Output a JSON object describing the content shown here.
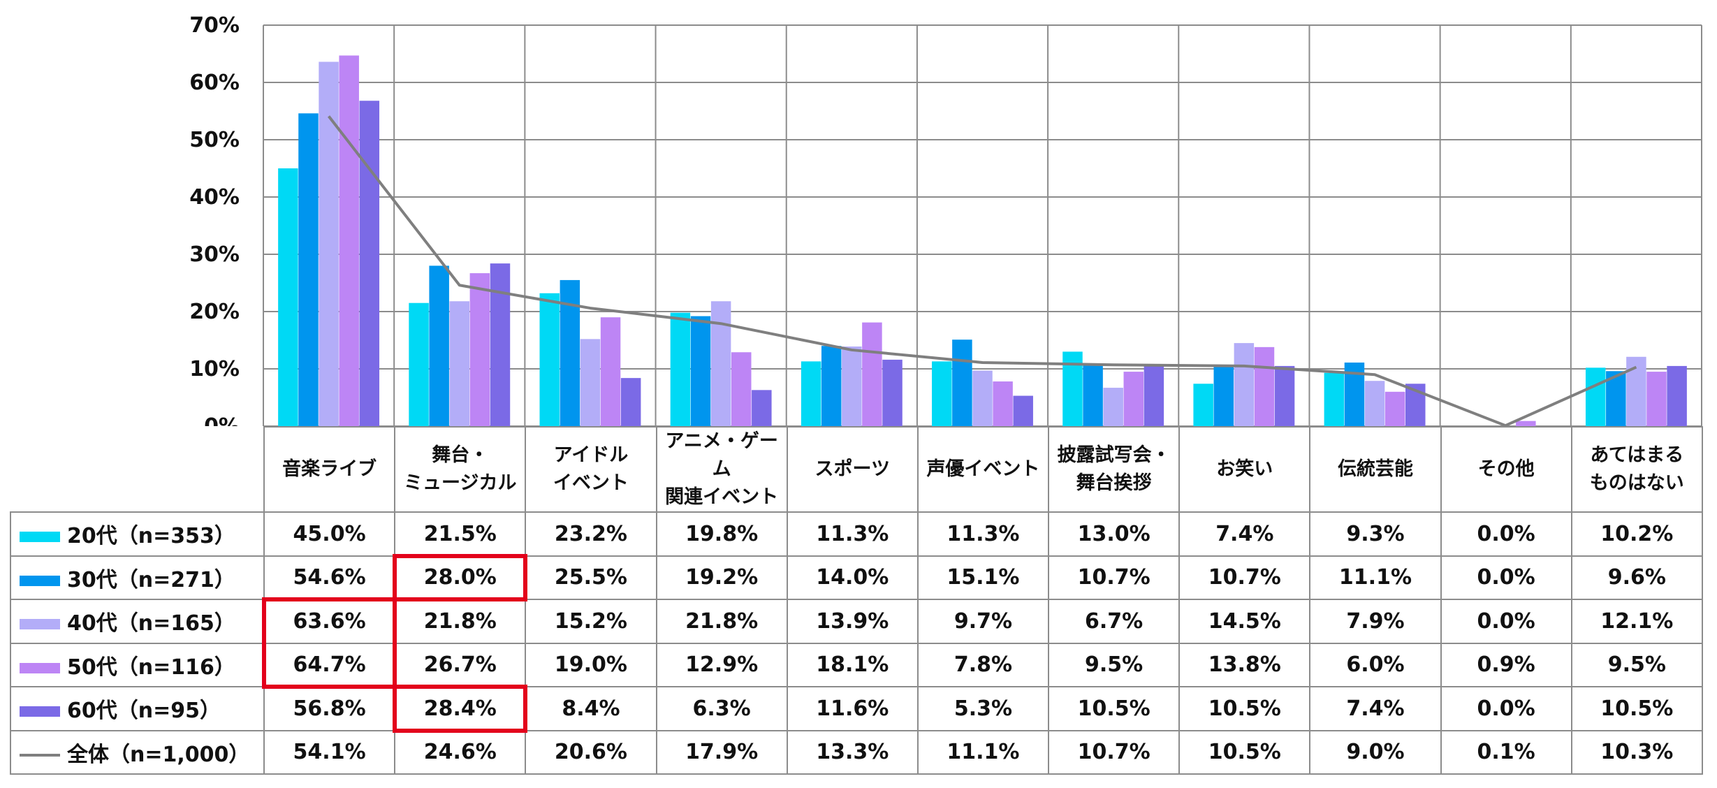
{
  "chart_data": {
    "type": "bar",
    "ylim": [
      0,
      70
    ],
    "yticks": [
      "0%",
      "10%",
      "20%",
      "30%",
      "40%",
      "50%",
      "60%",
      "70%"
    ],
    "categories": [
      "音楽ライブ",
      "舞台・\nミュージカル",
      "アイドル\nイベント",
      "アニメ・ゲーム\n関連イベント",
      "スポーツ",
      "声優イベント",
      "披露試写会・\n舞台挨拶",
      "お笑い",
      "伝統芸能",
      "その他",
      "あてはまる\nものはない"
    ],
    "series": [
      {
        "name": "20代（n=353）",
        "color": "#00d9f5",
        "values": [
          45.0,
          21.5,
          23.2,
          19.8,
          11.3,
          11.3,
          13.0,
          7.4,
          9.3,
          0.0,
          10.2
        ],
        "labels": [
          "45.0%",
          "21.5%",
          "23.2%",
          "19.8%",
          "11.3%",
          "11.3%",
          "13.0%",
          "7.4%",
          "9.3%",
          "0.0%",
          "10.2%"
        ]
      },
      {
        "name": "30代（n=271）",
        "color": "#0095ee",
        "values": [
          54.6,
          28.0,
          25.5,
          19.2,
          14.0,
          15.1,
          10.7,
          10.7,
          11.1,
          0.0,
          9.6
        ],
        "labels": [
          "54.6%",
          "28.0%",
          "25.5%",
          "19.2%",
          "14.0%",
          "15.1%",
          "10.7%",
          "10.7%",
          "11.1%",
          "0.0%",
          "9.6%"
        ]
      },
      {
        "name": "40代（n=165）",
        "color": "#b3adf8",
        "values": [
          63.6,
          21.8,
          15.2,
          21.8,
          13.9,
          9.7,
          6.7,
          14.5,
          7.9,
          0.0,
          12.1
        ],
        "labels": [
          "63.6%",
          "21.8%",
          "15.2%",
          "21.8%",
          "13.9%",
          "9.7%",
          "6.7%",
          "14.5%",
          "7.9%",
          "0.0%",
          "12.1%"
        ]
      },
      {
        "name": "50代（n=116）",
        "color": "#bd85f5",
        "values": [
          64.7,
          26.7,
          19.0,
          12.9,
          18.1,
          7.8,
          9.5,
          13.8,
          6.0,
          0.9,
          9.5
        ],
        "labels": [
          "64.7%",
          "26.7%",
          "19.0%",
          "12.9%",
          "18.1%",
          "7.8%",
          "9.5%",
          "13.8%",
          "6.0%",
          "0.9%",
          "9.5%"
        ]
      },
      {
        "name": "60代（n=95）",
        "color": "#7b6ae6",
        "values": [
          56.8,
          28.4,
          8.4,
          6.3,
          11.6,
          5.3,
          10.5,
          10.5,
          7.4,
          0.0,
          10.5
        ],
        "labels": [
          "56.8%",
          "28.4%",
          "8.4%",
          "6.3%",
          "11.6%",
          "5.3%",
          "10.5%",
          "10.5%",
          "7.4%",
          "0.0%",
          "10.5%"
        ]
      }
    ],
    "total": {
      "name": "全体（n=1,000）",
      "color": "#7f7f7f",
      "type": "line",
      "values": [
        54.1,
        24.6,
        20.6,
        17.9,
        13.3,
        11.1,
        10.7,
        10.5,
        9.0,
        0.1,
        10.3
      ],
      "labels": [
        "54.1%",
        "24.6%",
        "20.6%",
        "17.9%",
        "13.3%",
        "11.1%",
        "10.7%",
        "10.5%",
        "9.0%",
        "0.1%",
        "10.3%"
      ]
    },
    "highlights": [
      {
        "category_index": 0,
        "series_from": 2,
        "series_to": 3
      },
      {
        "category_index": 1,
        "series_from": 1,
        "series_to": 1
      },
      {
        "category_index": 1,
        "series_from": 4,
        "series_to": 4
      }
    ],
    "grid": true
  }
}
